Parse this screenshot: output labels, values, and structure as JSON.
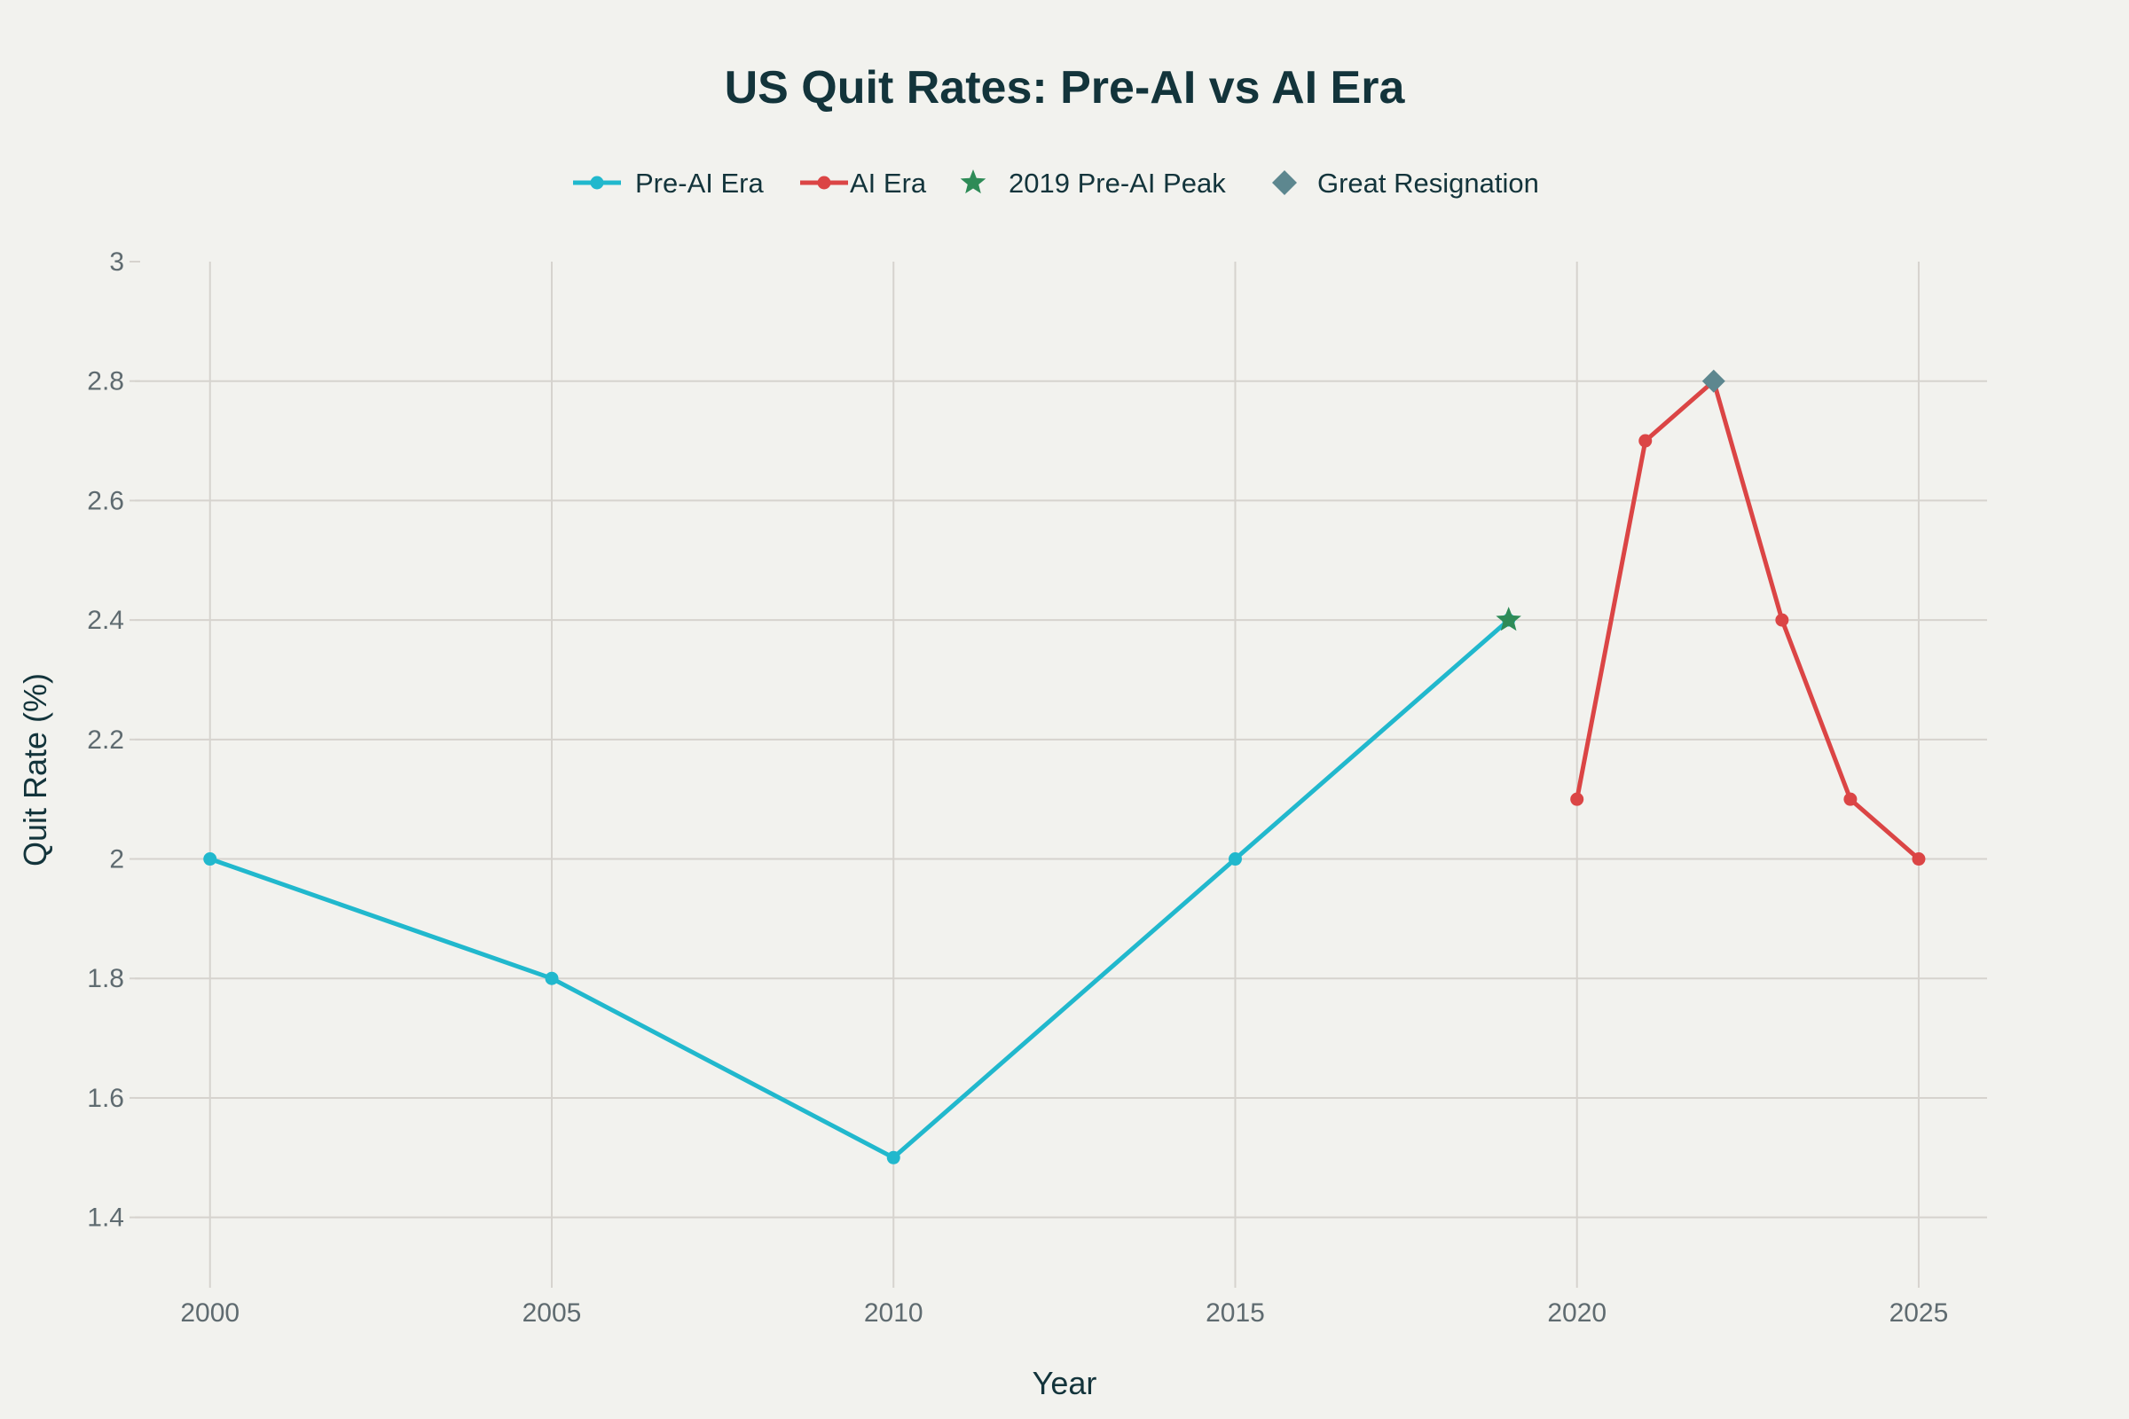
{
  "chart_data": {
    "type": "line",
    "title": "US Quit Rates: Pre-AI vs AI Era",
    "xlabel": "Year",
    "ylabel": "Quit Rate (%)",
    "xlim": [
      1998.9,
      2026
    ],
    "ylim": [
      1.3,
      3.0
    ],
    "xticks": [
      2000,
      2005,
      2010,
      2015,
      2020,
      2025
    ],
    "xtick_labels": [
      "2000",
      "2005",
      "2010",
      "2015",
      "2020",
      "2025"
    ],
    "yticks": [
      1.4,
      1.6,
      1.8,
      2.0,
      2.2,
      2.4,
      2.6,
      2.8,
      3.0
    ],
    "ytick_labels": [
      "1.4",
      "1.6",
      "1.8",
      "2",
      "2.2",
      "2.4",
      "2.6",
      "2.8",
      "3"
    ],
    "grid": true,
    "legend_position": "top-center",
    "series": [
      {
        "name": "Pre-AI Era",
        "kind": "line+markers",
        "color": "#21b8cd",
        "x": [
          2000,
          2005,
          2010,
          2015,
          2019
        ],
        "y": [
          2.0,
          1.8,
          1.5,
          2.0,
          2.4
        ]
      },
      {
        "name": "AI Era",
        "kind": "line+markers",
        "color": "#db4545",
        "x": [
          2020,
          2021,
          2022,
          2023,
          2024,
          2025
        ],
        "y": [
          2.1,
          2.7,
          2.8,
          2.4,
          2.1,
          2.0
        ]
      },
      {
        "name": "2019 Pre-AI Peak",
        "kind": "marker-star",
        "color": "#2e8b57",
        "x": [
          2019
        ],
        "y": [
          2.4
        ]
      },
      {
        "name": "Great Resignation",
        "kind": "marker-diamond",
        "color": "#5d878f",
        "x": [
          2022
        ],
        "y": [
          2.8
        ]
      }
    ]
  }
}
